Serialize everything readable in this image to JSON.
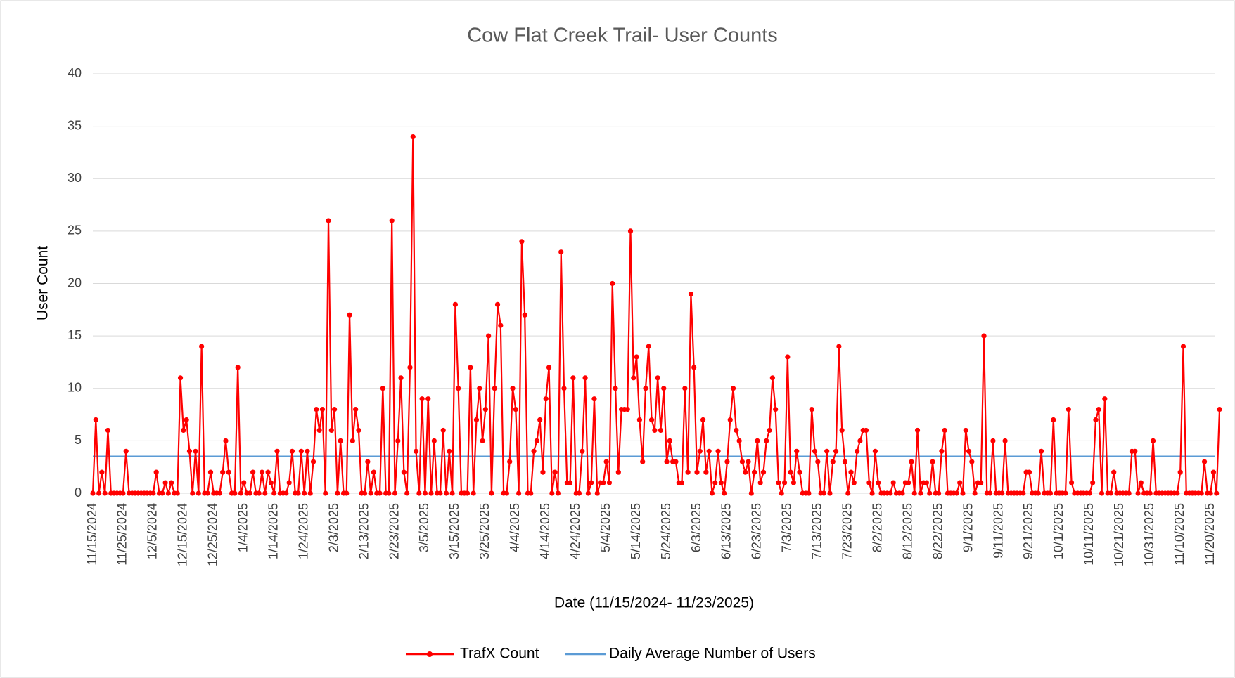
{
  "chart_data": {
    "type": "line",
    "title": "Cow Flat Creek Trail- User Counts",
    "x_label": "Date (11/15/2024- 11/23/2025)",
    "y_label": "User Count",
    "ylim": [
      0,
      40
    ],
    "yticks": [
      0,
      5,
      10,
      15,
      20,
      25,
      30,
      35,
      40
    ],
    "grid": true,
    "legend": "bottom",
    "categories": [
      "11/15/2024",
      null,
      null,
      null,
      null,
      null,
      null,
      null,
      null,
      null,
      "11/25/2024",
      null,
      null,
      null,
      null,
      null,
      null,
      null,
      null,
      null,
      "12/5/2024",
      null,
      null,
      null,
      null,
      null,
      null,
      null,
      null,
      null,
      "12/15/2024",
      null,
      null,
      null,
      null,
      null,
      null,
      null,
      null,
      null,
      "12/25/2024",
      null,
      null,
      null,
      null,
      null,
      null,
      null,
      null,
      null,
      "1/4/2025",
      null,
      null,
      null,
      null,
      null,
      null,
      null,
      null,
      null,
      "1/14/2025",
      null,
      null,
      null,
      null,
      null,
      null,
      null,
      null,
      null,
      "1/24/2025",
      null,
      null,
      null,
      null,
      null,
      null,
      null,
      null,
      null,
      "2/3/2025",
      null,
      null,
      null,
      null,
      null,
      null,
      null,
      null,
      null,
      "2/13/2025",
      null,
      null,
      null,
      null,
      null,
      null,
      null,
      null,
      null,
      "2/23/2025",
      null,
      null,
      null,
      null,
      null,
      null,
      null,
      null,
      null,
      "3/5/2025",
      null,
      null,
      null,
      null,
      null,
      null,
      null,
      null,
      null,
      "3/15/2025",
      null,
      null,
      null,
      null,
      null,
      null,
      null,
      null,
      null,
      "3/25/2025",
      null,
      null,
      null,
      null,
      null,
      null,
      null,
      null,
      null,
      "4/4/2025",
      null,
      null,
      null,
      null,
      null,
      null,
      null,
      null,
      null,
      "4/14/2025",
      null,
      null,
      null,
      null,
      null,
      null,
      null,
      null,
      null,
      "4/24/2025",
      null,
      null,
      null,
      null,
      null,
      null,
      null,
      null,
      null,
      "5/4/2025",
      null,
      null,
      null,
      null,
      null,
      null,
      null,
      null,
      null,
      "5/14/2025",
      null,
      null,
      null,
      null,
      null,
      null,
      null,
      null,
      null,
      "5/24/2025",
      null,
      null,
      null,
      null,
      null,
      null,
      null,
      null,
      null,
      "6/3/2025",
      null,
      null,
      null,
      null,
      null,
      null,
      null,
      null,
      null,
      "6/13/2025",
      null,
      null,
      null,
      null,
      null,
      null,
      null,
      null,
      null,
      "6/23/2025",
      null,
      null,
      null,
      null,
      null,
      null,
      null,
      null,
      null,
      "7/3/2025",
      null,
      null,
      null,
      null,
      null,
      null,
      null,
      null,
      null,
      "7/13/2025",
      null,
      null,
      null,
      null,
      null,
      null,
      null,
      null,
      null,
      "7/23/2025",
      null,
      null,
      null,
      null,
      null,
      null,
      null,
      null,
      null,
      "8/2/2025",
      null,
      null,
      null,
      null,
      null,
      null,
      null,
      null,
      null,
      "8/12/2025",
      null,
      null,
      null,
      null,
      null,
      null,
      null,
      null,
      null,
      "8/22/2025",
      null,
      null,
      null,
      null,
      null,
      null,
      null,
      null,
      null,
      "9/1/2025",
      null,
      null,
      null,
      null,
      null,
      null,
      null,
      null,
      null,
      "9/11/2025",
      null,
      null,
      null,
      null,
      null,
      null,
      null,
      null,
      null,
      "9/21/2025",
      null,
      null,
      null,
      null,
      null,
      null,
      null,
      null,
      null,
      "10/1/2025",
      null,
      null,
      null,
      null,
      null,
      null,
      null,
      null,
      null,
      "10/11/2025",
      null,
      null,
      null,
      null,
      null,
      null,
      null,
      null,
      null,
      "10/21/2025",
      null,
      null,
      null,
      null,
      null,
      null,
      null,
      null,
      null,
      "10/31/2025",
      null,
      null,
      null,
      null,
      null,
      null,
      null,
      null,
      null,
      "11/10/2025",
      null,
      null,
      null,
      null,
      null,
      null,
      null,
      null,
      null,
      "11/20/2025",
      null,
      null,
      null
    ],
    "series": [
      {
        "name": "TrafX Count",
        "color": "#ff0000",
        "values": [
          0,
          7,
          0,
          2,
          0,
          6,
          0,
          0,
          0,
          0,
          0,
          4,
          0,
          0,
          0,
          0,
          0,
          0,
          0,
          0,
          0,
          2,
          0,
          0,
          1,
          0,
          1,
          0,
          0,
          11,
          6,
          7,
          4,
          0,
          4,
          0,
          14,
          0,
          0,
          2,
          0,
          0,
          0,
          2,
          5,
          2,
          0,
          0,
          12,
          0,
          1,
          0,
          0,
          2,
          0,
          0,
          2,
          0,
          2,
          1,
          0,
          4,
          0,
          0,
          0,
          1,
          4,
          0,
          0,
          4,
          0,
          4,
          0,
          3,
          8,
          6,
          8,
          0,
          26,
          6,
          8,
          0,
          5,
          0,
          0,
          17,
          5,
          8,
          6,
          0,
          0,
          3,
          0,
          2,
          0,
          0,
          10,
          0,
          0,
          26,
          0,
          5,
          11,
          2,
          0,
          12,
          34,
          4,
          0,
          9,
          0,
          9,
          0,
          5,
          0,
          0,
          6,
          0,
          4,
          0,
          18,
          10,
          0,
          0,
          0,
          12,
          0,
          7,
          10,
          5,
          8,
          15,
          0,
          10,
          18,
          16,
          0,
          0,
          3,
          10,
          8,
          0,
          24,
          17,
          0,
          0,
          4,
          5,
          7,
          2,
          9,
          12,
          0,
          2,
          0,
          23,
          10,
          1,
          1,
          11,
          0,
          0,
          4,
          11,
          0,
          1,
          9,
          0,
          1,
          1,
          3,
          1,
          20,
          10,
          2,
          8,
          8,
          8,
          25,
          11,
          13,
          7,
          3,
          10,
          14,
          7,
          6,
          11,
          6,
          10,
          3,
          5,
          3,
          3,
          1,
          1,
          10,
          2,
          19,
          12,
          2,
          4,
          7,
          2,
          4,
          0,
          1,
          4,
          1,
          0,
          3,
          7,
          10,
          6,
          5,
          3,
          2,
          3,
          0,
          2,
          5,
          1,
          2,
          5,
          6,
          11,
          8,
          1,
          0,
          1,
          13,
          2,
          1,
          4,
          2,
          0,
          0,
          0,
          8,
          4,
          3,
          0,
          0,
          4,
          0,
          3,
          4,
          14,
          6,
          3,
          0,
          2,
          1,
          4,
          5,
          6,
          6,
          1,
          0,
          4,
          1,
          0,
          0,
          0,
          0,
          1,
          0,
          0,
          0,
          1,
          1,
          3,
          0,
          6,
          0,
          1,
          1,
          0,
          3,
          0,
          0,
          4,
          6,
          0,
          0,
          0,
          0,
          1,
          0,
          6,
          4,
          3,
          0,
          1,
          1,
          15,
          0,
          0,
          5,
          0,
          0,
          0,
          5,
          0,
          0,
          0,
          0,
          0,
          0,
          2,
          2,
          0,
          0,
          0,
          4,
          0,
          0,
          0,
          7,
          0,
          0,
          0,
          0,
          8,
          1,
          0,
          0,
          0,
          0,
          0,
          0,
          1,
          7,
          8,
          0,
          9,
          0,
          0,
          2,
          0,
          0,
          0,
          0,
          0,
          4,
          4,
          0,
          1,
          0,
          0,
          0,
          5,
          0,
          0,
          0,
          0,
          0,
          0,
          0,
          0,
          2,
          14,
          0,
          0,
          0,
          0,
          0,
          0,
          3,
          0,
          0,
          2,
          0,
          8
        ]
      }
    ],
    "reference_line": {
      "name": "Daily Average Number of Users",
      "color": "#5b9bd5",
      "value": 3.5
    }
  }
}
